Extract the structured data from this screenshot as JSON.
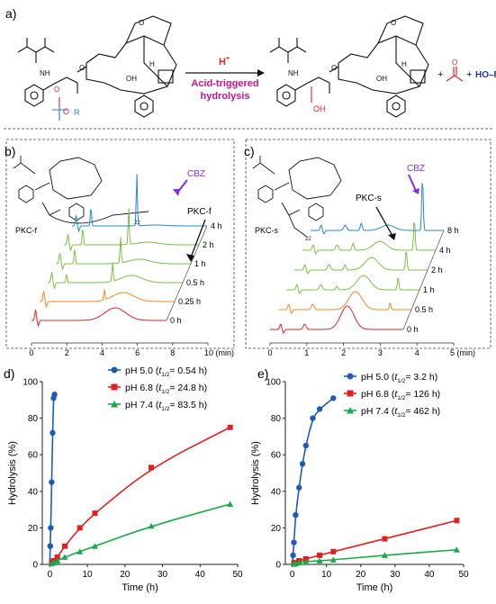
{
  "panel_labels": {
    "a": "a)",
    "b": "b)",
    "c": "c)",
    "d": "d)",
    "e": "e)"
  },
  "reaction": {
    "reagent": "H",
    "reagent_sup": "+",
    "condition_line1": "Acid-triggered",
    "condition_line2": "hydrolysis",
    "plus1": "+",
    "plus2": "+",
    "byproduct": "HO–R",
    "r_group": "R",
    "oh_label": "OH",
    "colors": {
      "arrow_text": "#c8148c",
      "red": "#e0232a",
      "blue": "#1f3d8f",
      "r_blue": "#2a7fd4"
    }
  },
  "chromatogram_b": {
    "compound": "PKC-f",
    "peak_label": "CBZ",
    "pointer_label": "PKC-f",
    "peg_subscript": "22",
    "times": [
      "0 h",
      "0.25 h",
      "0.5 h",
      "1 h",
      "2 h",
      "4 h"
    ],
    "trace_colors": [
      "#e0232a",
      "#f08a24",
      "#7ac143",
      "#7ac143",
      "#7ac143",
      "#2a88c8"
    ],
    "xticks": [
      "0",
      "2",
      "4",
      "6",
      "8",
      "10 (min)"
    ]
  },
  "chromatogram_c": {
    "compound": "PKC-s",
    "peak_label": "CBZ",
    "pointer_label": "PKC-s",
    "peg_subscript": "22",
    "times": [
      "0 h",
      "0.5 h",
      "1 h",
      "2 h",
      "4 h",
      "8 h"
    ],
    "trace_colors": [
      "#e0232a",
      "#f08a24",
      "#7ac143",
      "#7ac143",
      "#7ac143",
      "#2a88c8"
    ],
    "xticks": [
      "0",
      "1",
      "2",
      "3",
      "4",
      "5 (min)"
    ]
  },
  "chart_data": [
    {
      "type": "line",
      "panel": "d",
      "xlabel": "Time (h)",
      "ylabel": "Hydrolysis (%)",
      "xlim": [
        -2,
        50
      ],
      "ylim": [
        0,
        100
      ],
      "xticks": [
        0,
        10,
        20,
        30,
        40,
        50
      ],
      "yticks": [
        0,
        20,
        40,
        60,
        80,
        100
      ],
      "legend_position": "top-right",
      "series": [
        {
          "name": "pH 5.0",
          "t_half": "0.54 h",
          "color": "#1f5bb4",
          "marker": "circle",
          "x": [
            0,
            0.1,
            0.25,
            0.5,
            0.75,
            1.0,
            1.25
          ],
          "y": [
            0,
            10,
            20,
            45,
            72,
            91,
            93
          ]
        },
        {
          "name": "pH 6.8",
          "t_half": "24.8 h",
          "color": "#e02020",
          "marker": "square",
          "x": [
            0,
            0.5,
            1,
            2,
            4,
            8,
            12,
            27,
            48
          ],
          "y": [
            0,
            1,
            2,
            4,
            10,
            20,
            28,
            53,
            75
          ]
        },
        {
          "name": "pH 7.4",
          "t_half": "83.5 h",
          "color": "#1aaa4a",
          "marker": "triangle",
          "x": [
            0,
            0.5,
            1,
            2,
            4,
            8,
            12,
            27,
            48
          ],
          "y": [
            0,
            0.5,
            1,
            2,
            4,
            7,
            10,
            21,
            33
          ]
        }
      ]
    },
    {
      "type": "line",
      "panel": "e",
      "xlabel": "Time (h)",
      "ylabel": "Hydrolysis (%)",
      "xlim": [
        -2,
        50
      ],
      "ylim": [
        0,
        100
      ],
      "xticks": [
        0,
        10,
        20,
        30,
        40,
        50
      ],
      "yticks": [
        0,
        20,
        40,
        60,
        80,
        100
      ],
      "legend_position": "top-right",
      "series": [
        {
          "name": "pH 5.0",
          "t_half": "3.2 h",
          "color": "#1f5bb4",
          "marker": "circle",
          "x": [
            0,
            0.25,
            0.5,
            1,
            2,
            3,
            4,
            6,
            8,
            12
          ],
          "y": [
            0,
            5,
            12,
            27,
            42,
            55,
            65,
            80,
            85,
            91
          ]
        },
        {
          "name": "pH 6.8",
          "t_half": "126 h",
          "color": "#e02020",
          "marker": "square",
          "x": [
            0,
            0.5,
            1,
            2,
            4,
            8,
            12,
            27,
            48
          ],
          "y": [
            0,
            0.5,
            1,
            2,
            3,
            5,
            7,
            14,
            24
          ]
        },
        {
          "name": "pH 7.4",
          "t_half": "462 h",
          "color": "#1aaa4a",
          "marker": "triangle",
          "x": [
            0,
            0.5,
            1,
            2,
            4,
            8,
            12,
            27,
            48
          ],
          "y": [
            0,
            0.2,
            0.5,
            1,
            1.5,
            2,
            2.5,
            5,
            8
          ]
        }
      ]
    }
  ]
}
